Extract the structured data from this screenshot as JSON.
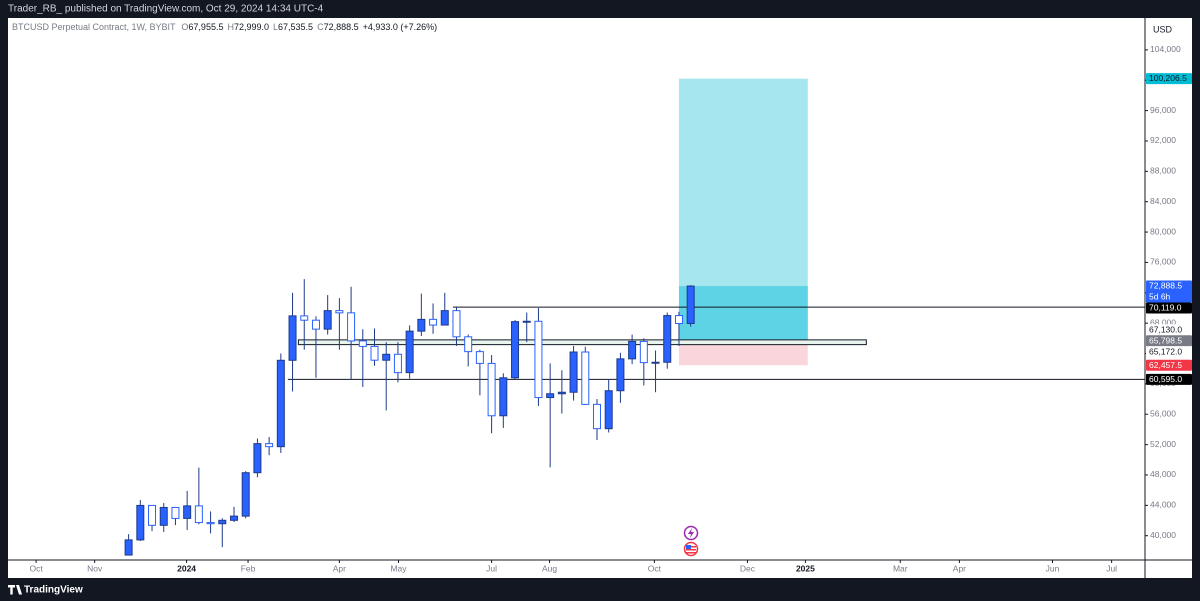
{
  "header": {
    "text": "Trader_RB_ published on TradingView.com, Oct 29, 2024 14:34 UTC-4"
  },
  "footer": {
    "logo": "TradingView"
  },
  "chart_data": {
    "type": "candlestick",
    "title": "BTCUSD Perpetual Contract, 1W, BYBIT",
    "ohlc_names": [
      "O",
      "H",
      "L",
      "C"
    ],
    "ohlc_labels": [
      "67,955.5",
      "72,999.0",
      "67,535.5",
      "72,888.5"
    ],
    "change_label": "+4,933.0 (+7.26%)",
    "currency": "USD",
    "categories": [
      null,
      null,
      null,
      null,
      null,
      null,
      null,
      null,
      null,
      null,
      null,
      null,
      null,
      null,
      null,
      null,
      null,
      null,
      null,
      null,
      null,
      null,
      null,
      null,
      null,
      null,
      null,
      null,
      null,
      null,
      null,
      null,
      null,
      null,
      null,
      null,
      null,
      null,
      null,
      null,
      null,
      null,
      null,
      null,
      null,
      null,
      null,
      null,
      null
    ],
    "open": [
      37450,
      39450,
      43990,
      41370,
      43720,
      42280,
      43930,
      41730,
      41580,
      42030,
      42580,
      48300,
      52130,
      51730,
      63110,
      68960,
      68390,
      67210,
      69650,
      69360,
      65660,
      64940,
      63120,
      63900,
      61480,
      66950,
      68500,
      67750,
      69650,
      66200,
      64250,
      62700,
      55800,
      60800,
      68200,
      68250,
      58200,
      58700,
      58900,
      64200,
      57300,
      54100,
      59100,
      63300,
      65600,
      62800,
      62850,
      69000,
      67955.5
    ],
    "high": [
      40200,
      44700,
      44000,
      44300,
      43800,
      45900,
      48970,
      43200,
      42300,
      43800,
      48500,
      52800,
      53000,
      64000,
      72000,
      73800,
      68900,
      71700,
      71300,
      72800,
      67200,
      67300,
      65500,
      65500,
      67700,
      71900,
      70600,
      72000,
      70200,
      66500,
      64500,
      63800,
      61400,
      68400,
      69400,
      70000,
      62700,
      61800,
      65000,
      64900,
      58000,
      60600,
      64100,
      66500,
      66000,
      64400,
      69400,
      69500,
      72999.0
    ],
    "low": [
      37400,
      39300,
      40600,
      40500,
      41400,
      40750,
      41500,
      40300,
      38500,
      41800,
      42300,
      47700,
      50600,
      50900,
      59000,
      64500,
      60800,
      66500,
      64500,
      60600,
      59600,
      62400,
      56500,
      60200,
      60700,
      66300,
      66600,
      67700,
      65000,
      62300,
      58500,
      53500,
      54200,
      60600,
      65500,
      57100,
      49000,
      56100,
      57800,
      57200,
      52600,
      53600,
      57500,
      62600,
      59800,
      58900,
      62000,
      65000,
      67535.5
    ],
    "close": [
      39450,
      43990,
      41370,
      43720,
      42280,
      43930,
      41730,
      41580,
      42030,
      42580,
      48300,
      52130,
      51730,
      63110,
      68960,
      68390,
      67210,
      69650,
      69360,
      65660,
      64940,
      63120,
      63900,
      61480,
      66950,
      68500,
      67750,
      69650,
      66200,
      64250,
      62700,
      55800,
      60800,
      68200,
      68250,
      58200,
      58700,
      58900,
      64200,
      57300,
      54100,
      59100,
      63300,
      65600,
      62800,
      62850,
      69000,
      67950,
      72888.5
    ],
    "up_color": "#2962ff",
    "down_color": "#ffffff",
    "outline_color": "#1e3a8a",
    "xlim": [
      -10.3,
      86.8
    ],
    "xticks": [
      {
        "value": -7.9,
        "label": "Oct"
      },
      {
        "value": -2.9,
        "label": "Nov"
      },
      {
        "value": 4.95,
        "label": "2024"
      },
      {
        "value": 10.2,
        "label": "Feb"
      },
      {
        "value": 18.0,
        "label": "Apr"
      },
      {
        "value": 23.05,
        "label": "May"
      },
      {
        "value": 31.0,
        "label": "Jul"
      },
      {
        "value": 35.95,
        "label": "Aug"
      },
      {
        "value": 44.9,
        "label": "Oct"
      },
      {
        "value": 52.85,
        "label": "Dec"
      },
      {
        "value": 57.8,
        "label": "2025"
      },
      {
        "value": 65.9,
        "label": "Mar"
      },
      {
        "value": 70.95,
        "label": "Apr"
      },
      {
        "value": 78.9,
        "label": "Jun"
      },
      {
        "value": 83.95,
        "label": "Jul"
      }
    ],
    "ylim": [
      36800,
      108200
    ],
    "yticks": [
      {
        "value": 40000,
        "label": "40,000"
      },
      {
        "value": 44000,
        "label": "44,000"
      },
      {
        "value": 48000,
        "label": "48,000"
      },
      {
        "value": 52000,
        "label": "52,000"
      },
      {
        "value": 56000,
        "label": "56,000"
      },
      {
        "value": 60000,
        "label": "60,000"
      },
      {
        "value": 64000,
        "label": "64,000"
      },
      {
        "value": 68000,
        "label": "68,000"
      },
      {
        "value": 72000,
        "label": "72,000"
      },
      {
        "value": 76000,
        "label": "76,000"
      },
      {
        "value": 80000,
        "label": "80,000"
      },
      {
        "value": 84000,
        "label": "84,000"
      },
      {
        "value": 88000,
        "label": "88,000"
      },
      {
        "value": 92000,
        "label": "92,000"
      },
      {
        "value": 96000,
        "label": "96,000"
      },
      {
        "value": 100000,
        "label": "100,000"
      },
      {
        "value": 104000,
        "label": "104,000"
      }
    ],
    "grid": false,
    "price_labels": [
      {
        "value": 100206.5,
        "label": "100,206.5",
        "color": "#00bcd4",
        "text_color": "#131722"
      },
      {
        "value": 72888.5,
        "label": "72,888.5",
        "color": "#2962ff",
        "text_color": "#ffffff"
      },
      {
        "value": 70119.0,
        "label": "70,119.0",
        "color": "#000000",
        "text_color": "#ffffff"
      },
      {
        "value": 67130.0,
        "label": "67,130.0",
        "color": "#ffffff",
        "text_color": "#131722"
      },
      {
        "value": 65798.5,
        "label": "65,798.5",
        "color": "#787b86",
        "text_color": "#ffffff"
      },
      {
        "value": 65172.0,
        "label": "65,172.0",
        "color": "#ffffff",
        "text_color": "#131722"
      },
      {
        "value": 62457.5,
        "label": "62,457.5",
        "color": "#f23645",
        "text_color": "#ffffff"
      },
      {
        "value": 60595.0,
        "label": "60,595.0",
        "color": "#000000",
        "text_color": "#ffffff"
      }
    ],
    "countdown": "5d 6h",
    "levels": [
      {
        "value": 70119.0,
        "from": 27.7
      },
      {
        "value": 60595.0,
        "from": 13.6
      }
    ],
    "zone": {
      "top": 65798.5,
      "bottom": 65172.0,
      "from": 14.5,
      "to": 63,
      "color": "#e8f5ee"
    },
    "position": {
      "from": 47,
      "to": 58,
      "entry": 65798.5,
      "target": 100206.5,
      "stop": 62457.5,
      "profit_color": "#a5e6ef",
      "loss_color": "#fbd5dc",
      "open_color": "#5fd3e6"
    }
  }
}
